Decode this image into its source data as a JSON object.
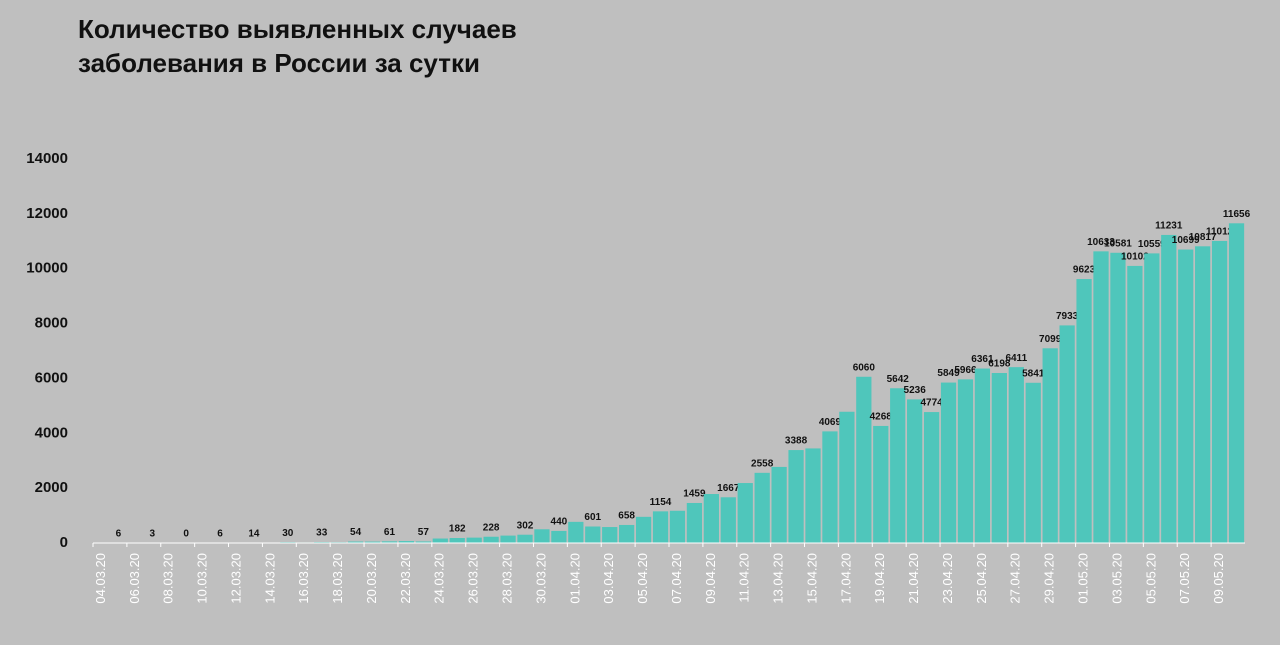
{
  "chart_data": {
    "type": "bar",
    "title": "Количество выявленных случаев заболевания в России за сутки",
    "categories": [
      "04.03.20",
      null,
      "06.03.20",
      null,
      "08.03.20",
      null,
      "10.03.20",
      null,
      "12.03.20",
      null,
      "14.03.20",
      null,
      "16.03.20",
      null,
      "18.03.20",
      null,
      "20.03.20",
      null,
      "22.03.20",
      null,
      "24.03.20",
      null,
      "26.03.20",
      null,
      "28.03.20",
      null,
      "30.03.20",
      null,
      "01.04.20",
      null,
      "03.04.20",
      null,
      "05.04.20",
      null,
      "07.04.20",
      null,
      "09.04.20",
      null,
      "11.04.20",
      null,
      "13.04.20",
      null,
      "15.04.20",
      null,
      "17.04.20",
      null,
      "19.04.20",
      null,
      "21.04.20",
      null,
      "23.04.20",
      null,
      "25.04.20",
      null,
      "27.04.20",
      null,
      "29.04.20",
      null,
      "01.05.20",
      null,
      "03.05.20",
      null,
      "05.05.20",
      null,
      "07.05.20",
      null,
      "09.05.20",
      null
    ],
    "values": [
      0,
      6,
      4,
      3,
      4,
      0,
      4,
      6,
      8,
      14,
      10,
      30,
      20,
      33,
      28,
      54,
      52,
      61,
      71,
      57,
      163,
      182,
      196,
      228,
      270,
      302,
      500,
      440,
      771,
      601,
      582,
      658,
      954,
      1154,
      1175,
      1459,
      1786,
      1667,
      2186,
      2558,
      2774,
      3388,
      3448,
      4069,
      4785,
      6060,
      4268,
      5642,
      5236,
      4774,
      5849,
      5966,
      6361,
      6198,
      6411,
      5841,
      7099,
      7933,
      9623,
      10633,
      10581,
      10102,
      10559,
      11231,
      10699,
      10817,
      11012,
      11656
    ],
    "value_labels": [
      null,
      "6",
      null,
      "3",
      null,
      "0",
      null,
      "6",
      null,
      "14",
      null,
      "30",
      null,
      "33",
      null,
      "54",
      null,
      "61",
      null,
      "57",
      null,
      "182",
      null,
      "228",
      null,
      "302",
      null,
      "440",
      null,
      "601",
      null,
      "658",
      null,
      "1154",
      null,
      "1459",
      null,
      "1667",
      null,
      "2558",
      null,
      "3388",
      null,
      "4069",
      null,
      "6060",
      "4268",
      "5642",
      "5236",
      "4774",
      "5849",
      "5966",
      "6361",
      "6198",
      "6411",
      "5841",
      "7099",
      "7933",
      "9623",
      "10633",
      "10581",
      "10102",
      "10559",
      "11231",
      "10699",
      "10817",
      "11012",
      "11656"
    ],
    "color": "#4fc6bb",
    "ylim": [
      0,
      14000
    ],
    "yticks": [
      0,
      2000,
      4000,
      6000,
      8000,
      10000,
      12000,
      14000
    ],
    "grid": false
  }
}
